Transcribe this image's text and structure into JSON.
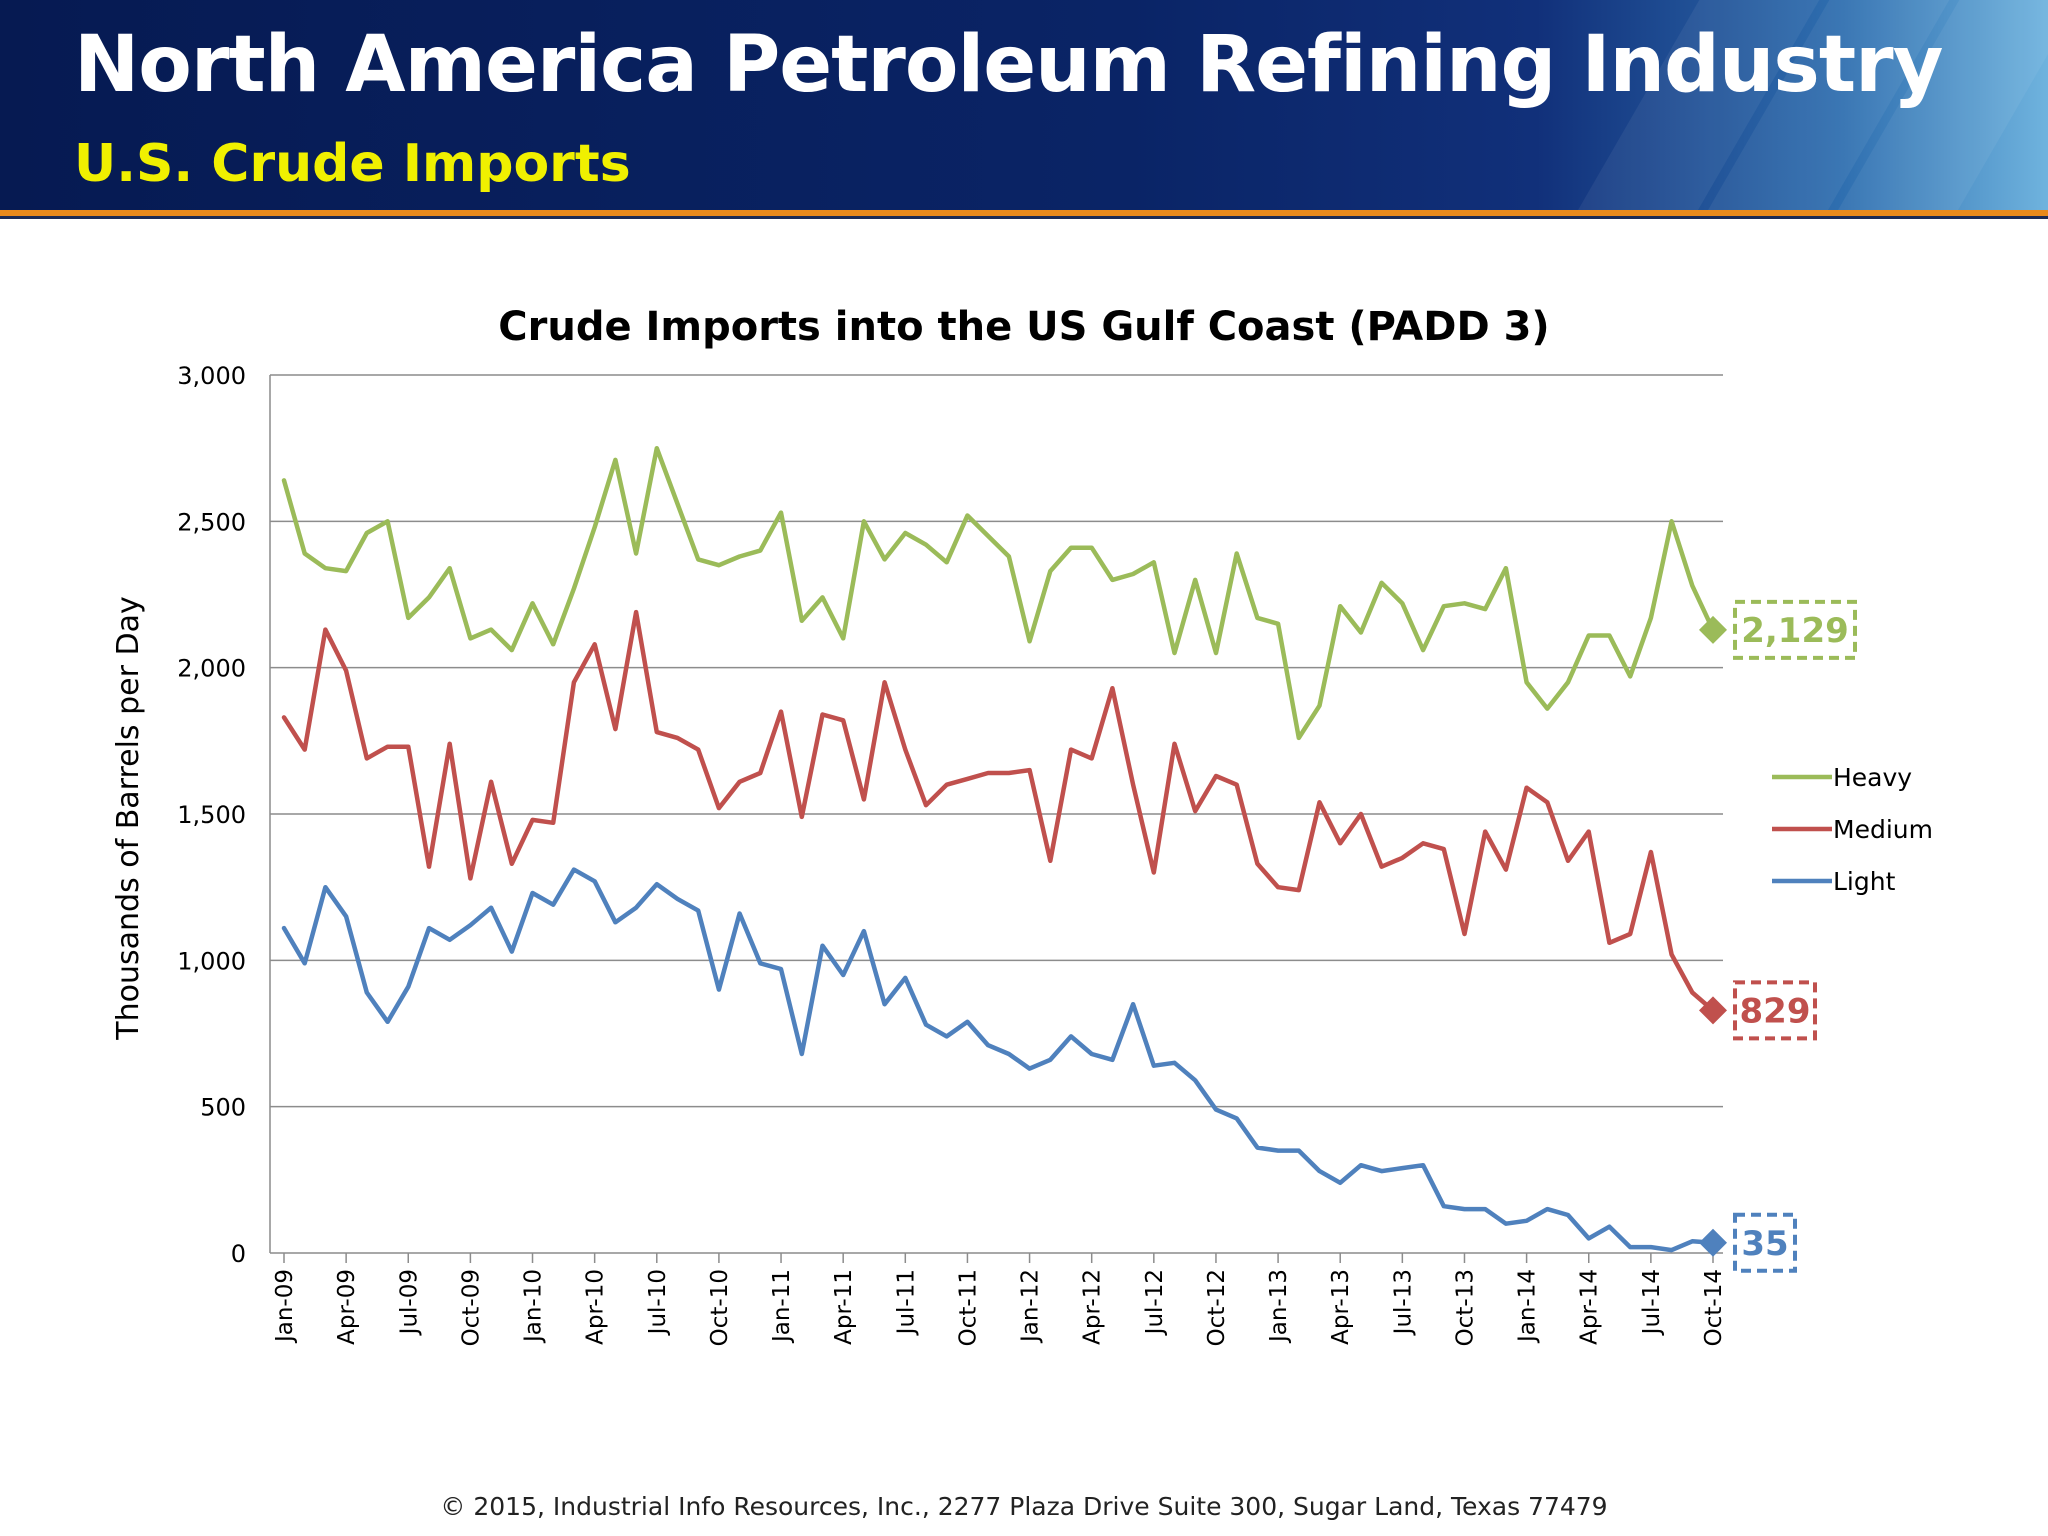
{
  "slide": {
    "title": "North America Petroleum Refining Industry",
    "subtitle": "U.S. Crude Imports",
    "footer": "© 2015, Industrial Info Resources, Inc.,  2277 Plaza Drive Suite 300, Sugar Land, Texas 77479"
  },
  "colors": {
    "header_bg": "#0a2466",
    "accent_orange": "#e8891c",
    "subtitle": "#f0f000"
  },
  "chart_data": {
    "type": "line",
    "title": "Crude Imports into the US Gulf Coast (PADD 3)",
    "xlabel": "",
    "ylabel": "Thousands of Barrels per Day",
    "ylim": [
      0,
      3000
    ],
    "yticks": [
      "0",
      "500",
      "1,000",
      "1,500",
      "2,000",
      "2,500",
      "3,000"
    ],
    "ytick_values": [
      0,
      500,
      1000,
      1500,
      2000,
      2500,
      3000
    ],
    "grid": true,
    "legend_position": "right",
    "x_tick_labels": [
      "Jan-09",
      "Apr-09",
      "Jul-09",
      "Oct-09",
      "Jan-10",
      "Apr-10",
      "Jul-10",
      "Oct-10",
      "Jan-11",
      "Apr-11",
      "Jul-11",
      "Oct-11",
      "Jan-12",
      "Apr-12",
      "Jul-12",
      "Oct-12",
      "Jan-13",
      "Apr-13",
      "Jul-13",
      "Oct-13",
      "Jan-14",
      "Apr-14",
      "Jul-14",
      "Oct-14"
    ],
    "series": [
      {
        "name": "Heavy",
        "color": "#9bbb59",
        "end_label": "2,129",
        "values": [
          2640,
          2390,
          2340,
          2330,
          2460,
          2500,
          2170,
          2240,
          2340,
          2100,
          2130,
          2060,
          2220,
          2080,
          2270,
          2480,
          2710,
          2390,
          2750,
          2560,
          2370,
          2350,
          2380,
          2400,
          2530,
          2160,
          2240,
          2100,
          2500,
          2370,
          2460,
          2420,
          2360,
          2520,
          2450,
          2380,
          2090,
          2330,
          2410,
          2410,
          2300,
          2320,
          2360,
          2050,
          2300,
          2050,
          2390,
          2170,
          2150,
          1760,
          1870,
          2210,
          2120,
          2290,
          2220,
          2060,
          2210,
          2220,
          2200,
          2340,
          1950,
          1860,
          1950,
          2110,
          2110,
          1970,
          2170,
          2500,
          2280,
          2129
        ]
      },
      {
        "name": "Medium",
        "color": "#c0504d",
        "end_label": "829",
        "values": [
          1830,
          1720,
          2130,
          1990,
          1690,
          1730,
          1730,
          1320,
          1740,
          1280,
          1610,
          1330,
          1480,
          1470,
          1950,
          2080,
          1790,
          2190,
          1780,
          1760,
          1720,
          1520,
          1610,
          1640,
          1850,
          1490,
          1840,
          1820,
          1550,
          1950,
          1720,
          1530,
          1600,
          1620,
          1640,
          1640,
          1650,
          1340,
          1720,
          1690,
          1930,
          1600,
          1300,
          1740,
          1510,
          1630,
          1600,
          1330,
          1250,
          1240,
          1540,
          1400,
          1500,
          1320,
          1350,
          1400,
          1380,
          1090,
          1440,
          1310,
          1590,
          1540,
          1340,
          1440,
          1060,
          1090,
          1370,
          1020,
          890,
          829
        ]
      },
      {
        "name": "Light",
        "color": "#4f81bd",
        "end_label": "35",
        "values": [
          1110,
          990,
          1250,
          1150,
          890,
          790,
          910,
          1110,
          1070,
          1120,
          1180,
          1030,
          1230,
          1190,
          1310,
          1270,
          1130,
          1180,
          1260,
          1210,
          1170,
          900,
          1160,
          990,
          970,
          680,
          1050,
          950,
          1100,
          850,
          940,
          780,
          740,
          790,
          710,
          680,
          630,
          660,
          740,
          680,
          660,
          850,
          640,
          650,
          590,
          490,
          460,
          360,
          350,
          350,
          280,
          240,
          300,
          280,
          290,
          300,
          160,
          150,
          150,
          100,
          110,
          150,
          130,
          50,
          90,
          20,
          20,
          10,
          40,
          35
        ]
      }
    ]
  }
}
